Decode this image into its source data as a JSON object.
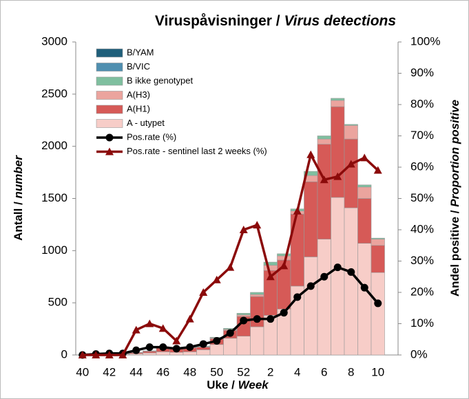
{
  "chart_data": {
    "type": "bar",
    "title": {
      "no": "Viruspåvisninger /",
      "en": "Virus detections"
    },
    "x_label": {
      "no": "Uke /",
      "en": "Week"
    },
    "y_label": {
      "no": "Antall /",
      "en": "number"
    },
    "y2_label": {
      "no": "Andel positive /",
      "en": "Proportion positive"
    },
    "categories": [
      40,
      null,
      42,
      null,
      44,
      null,
      46,
      null,
      48,
      null,
      50,
      null,
      52,
      null,
      2,
      null,
      4,
      null,
      6,
      null,
      8,
      null,
      10
    ],
    "stacked": true,
    "series": [
      {
        "name": "A - utypet",
        "type": "bar",
        "color": "#f7cdc8",
        "values": [
          2,
          3,
          6,
          8,
          12,
          20,
          30,
          25,
          30,
          50,
          100,
          160,
          180,
          270,
          380,
          440,
          660,
          940,
          1110,
          1510,
          1410,
          1070,
          790
        ]
      },
      {
        "name": "A(H1)",
        "type": "bar",
        "color": "#d65a57",
        "values": [
          0,
          1,
          3,
          4,
          10,
          15,
          35,
          35,
          40,
          25,
          55,
          75,
          190,
          290,
          430,
          470,
          690,
          720,
          910,
          870,
          660,
          430,
          260
        ]
      },
      {
        "name": "A(H3)",
        "type": "bar",
        "color": "#eba49e",
        "values": [
          0,
          0,
          0,
          0,
          1,
          2,
          3,
          3,
          5,
          5,
          8,
          10,
          15,
          20,
          50,
          40,
          30,
          60,
          50,
          60,
          130,
          110,
          60
        ]
      },
      {
        "name": "B ikke genotypet",
        "type": "bar",
        "color": "#7fbf9f",
        "values": [
          0,
          1,
          1,
          2,
          2,
          3,
          2,
          2,
          3,
          5,
          7,
          10,
          15,
          20,
          30,
          20,
          20,
          40,
          30,
          20,
          10,
          20,
          10
        ]
      },
      {
        "name": "B/VIC",
        "type": "bar",
        "color": "#4f8fb0",
        "values": [
          0,
          0,
          0,
          0,
          0,
          0,
          0,
          0,
          0,
          0,
          0,
          0,
          0,
          0,
          0,
          0,
          0,
          0,
          0,
          0,
          0,
          0,
          0
        ]
      },
      {
        "name": "B/YAM",
        "type": "bar",
        "color": "#1f5f7a",
        "values": [
          0,
          0,
          0,
          0,
          0,
          0,
          0,
          0,
          0,
          0,
          0,
          0,
          0,
          0,
          0,
          0,
          0,
          0,
          0,
          0,
          0,
          0,
          0
        ]
      },
      {
        "name": "Pos.rate (%)",
        "type": "line",
        "axis": "y2",
        "marker": "circle",
        "color": "#000000",
        "values": [
          0,
          0.3,
          0.5,
          0.5,
          1.5,
          2.5,
          2.5,
          2,
          2.5,
          3.5,
          4.5,
          7,
          11,
          11.5,
          11.5,
          13.5,
          18.5,
          22,
          25,
          28,
          26.5,
          21.5,
          16.5
        ]
      },
      {
        "name": "Pos.rate - sentinel last 2 weeks (%)",
        "type": "line",
        "axis": "y2",
        "marker": "triangle",
        "color": "#8b0a0a",
        "values": [
          0,
          0,
          0,
          0,
          8,
          10,
          8.5,
          4.5,
          11.5,
          20,
          24,
          28,
          40,
          41.5,
          25,
          28.5,
          46,
          64,
          56,
          57,
          61,
          63,
          59
        ]
      }
    ],
    "ylim": [
      0,
      3000
    ],
    "yticks": [
      0,
      500,
      1000,
      1500,
      2000,
      2500,
      3000
    ],
    "y2lim": [
      0,
      100
    ],
    "y2ticks": [
      {
        "value": 0,
        "label": "0%"
      },
      {
        "value": 10,
        "label": "10%"
      },
      {
        "value": 20,
        "label": "20%"
      },
      {
        "value": 30,
        "label": "30%"
      },
      {
        "value": 40,
        "label": "40%"
      },
      {
        "value": 50,
        "label": "50%"
      },
      {
        "value": 60,
        "label": "60%"
      },
      {
        "value": 70,
        "label": "70%"
      },
      {
        "value": 80,
        "label": "80%"
      },
      {
        "value": 90,
        "label": "90%"
      },
      {
        "value": 100,
        "label": "100%"
      }
    ],
    "legend": "top-left"
  }
}
